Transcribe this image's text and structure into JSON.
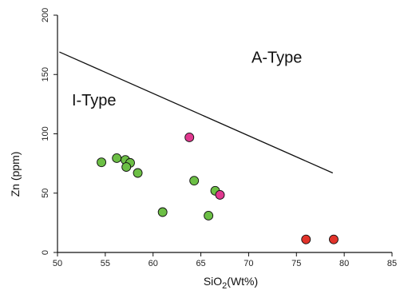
{
  "chart_data": {
    "type": "scatter",
    "title": "",
    "xlabel_main": "SiO",
    "xlabel_sub": "2",
    "xlabel_rest": "(Wt%)",
    "ylabel": "Zn (ppm)",
    "xlim": [
      50,
      85
    ],
    "ylim": [
      0,
      200
    ],
    "xticks": [
      50,
      55,
      60,
      65,
      70,
      75,
      80,
      85
    ],
    "yticks": [
      0,
      50,
      100,
      150,
      200
    ],
    "grid": false,
    "discriminant_line": {
      "x": [
        50.2,
        78.8
      ],
      "y": [
        169,
        67
      ]
    },
    "region_labels": [
      {
        "text": "A-Type",
        "x": 70.3,
        "y": 160
      },
      {
        "text": "I-Type",
        "x": 51.5,
        "y": 124
      }
    ],
    "series": [
      {
        "color": "#6cbf45",
        "points": [
          [
            54.6,
            76
          ],
          [
            56.2,
            79.5
          ],
          [
            57.1,
            78
          ],
          [
            57.6,
            75.5
          ],
          [
            57.2,
            72
          ],
          [
            58.4,
            67
          ],
          [
            64.3,
            60.5
          ],
          [
            66.5,
            52
          ],
          [
            61.0,
            34
          ],
          [
            65.8,
            31
          ]
        ]
      },
      {
        "color": "#e0388f",
        "points": [
          [
            63.8,
            97
          ],
          [
            67.0,
            48.5
          ]
        ]
      },
      {
        "color": "#e2332a",
        "points": [
          [
            76.0,
            11
          ],
          [
            78.9,
            11
          ]
        ]
      }
    ]
  }
}
